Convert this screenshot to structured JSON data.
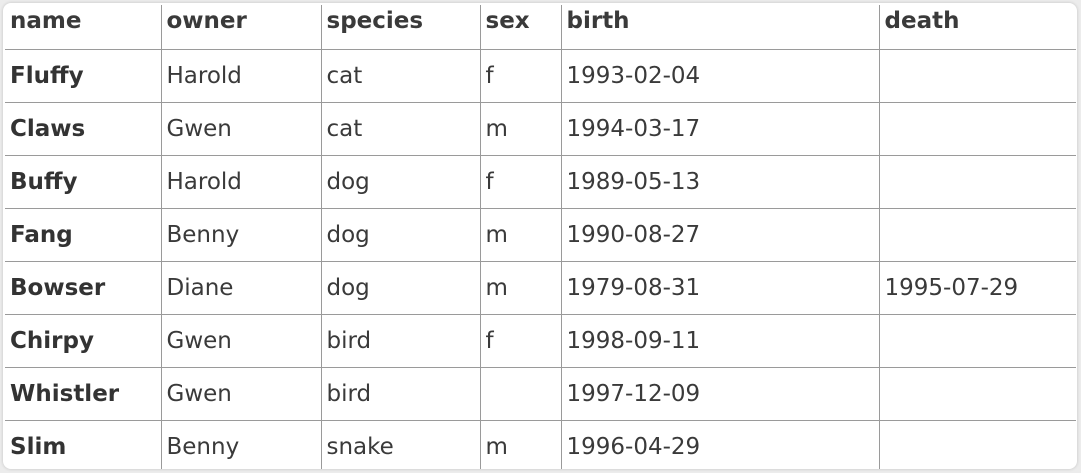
{
  "table": {
    "columns": [
      "name",
      "owner",
      "species",
      "sex",
      "birth",
      "death"
    ],
    "rows": [
      [
        "Fluffy",
        "Harold",
        "cat",
        "f",
        "1993-02-04",
        ""
      ],
      [
        "Claws",
        "Gwen",
        "cat",
        "m",
        "1994-03-17",
        ""
      ],
      [
        "Buffy",
        "Harold",
        "dog",
        "f",
        "1989-05-13",
        ""
      ],
      [
        "Fang",
        "Benny",
        "dog",
        "m",
        "1990-08-27",
        ""
      ],
      [
        "Bowser",
        "Diane",
        "dog",
        "m",
        "1979-08-31",
        "1995-07-29"
      ],
      [
        "Chirpy",
        "Gwen",
        "bird",
        "f",
        "1998-09-11",
        ""
      ],
      [
        "Whistler",
        "Gwen",
        "bird",
        "",
        "1997-12-09",
        ""
      ],
      [
        "Slim",
        "Benny",
        "snake",
        "m",
        "1996-04-29",
        ""
      ]
    ]
  }
}
